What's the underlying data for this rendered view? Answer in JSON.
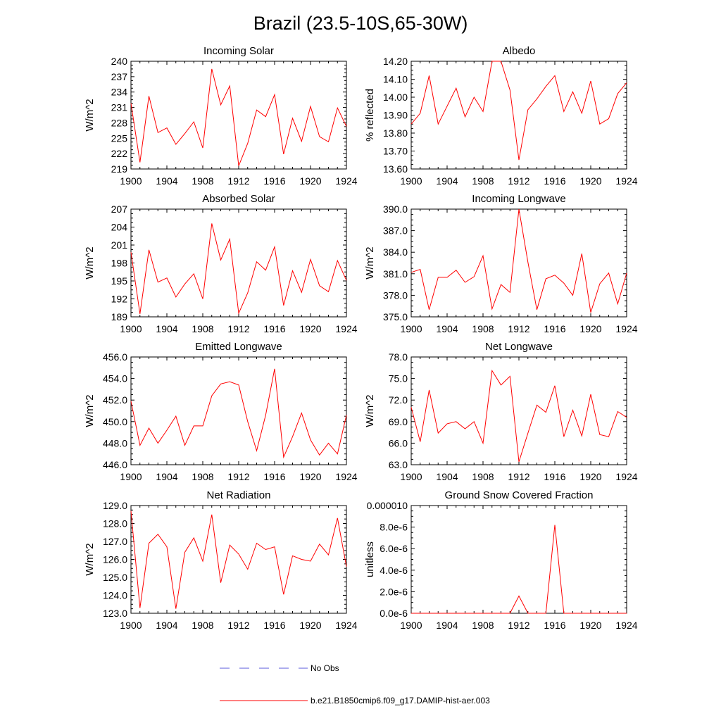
{
  "figure": {
    "title": "Brazil (23.5-10S,65-30W)",
    "line_color": "#ff0000",
    "obs_color": "#5a5adc"
  },
  "legend": [
    {
      "label": "No Obs",
      "style": "dashed",
      "color": "#5a5adc"
    },
    {
      "label": "b.e21.B1850cmip6.f09_g17.DAMIP-hist-aer.003",
      "style": "solid",
      "color": "#ff0000"
    }
  ],
  "chart_data": [
    {
      "type": "line",
      "title": "Incoming Solar",
      "ylabel": "W/m^2",
      "x": [
        1900,
        1901,
        1902,
        1903,
        1904,
        1905,
        1906,
        1907,
        1908,
        1909,
        1910,
        1911,
        1912,
        1913,
        1914,
        1915,
        1916,
        1917,
        1918,
        1919,
        1920,
        1921,
        1922,
        1923,
        1924
      ],
      "series": [
        {
          "values": [
            231.8,
            220.3,
            233.2,
            226.1,
            227.0,
            223.8,
            225.9,
            228.2,
            223.1,
            238.5,
            231.5,
            235.2,
            219.6,
            224.0,
            230.5,
            229.2,
            233.5,
            221.9,
            228.9,
            224.4,
            231.2,
            225.3,
            224.3,
            230.9,
            227.3
          ]
        }
      ],
      "xlim": [
        1900,
        1924
      ],
      "ylim": [
        219,
        240
      ],
      "xticks": [
        1900,
        1904,
        1908,
        1912,
        1916,
        1920,
        1924
      ],
      "yticks": [
        "219",
        "222",
        "225",
        "228",
        "231",
        "234",
        "237",
        "240"
      ]
    },
    {
      "type": "line",
      "title": "Albedo",
      "ylabel": "% reflected",
      "x": [
        1900,
        1901,
        1902,
        1903,
        1904,
        1905,
        1906,
        1907,
        1908,
        1909,
        1910,
        1911,
        1912,
        1913,
        1914,
        1915,
        1916,
        1917,
        1918,
        1919,
        1920,
        1921,
        1922,
        1923,
        1924
      ],
      "series": [
        {
          "values": [
            13.85,
            13.91,
            14.12,
            13.85,
            13.95,
            14.05,
            13.89,
            14.0,
            13.92,
            14.2,
            14.2,
            14.04,
            13.65,
            13.93,
            13.99,
            14.06,
            14.12,
            13.92,
            14.03,
            13.91,
            14.09,
            13.85,
            13.88,
            14.02,
            14.08
          ]
        }
      ],
      "xlim": [
        1900,
        1924
      ],
      "ylim": [
        13.6,
        14.2
      ],
      "xticks": [
        1900,
        1904,
        1908,
        1912,
        1916,
        1920,
        1924
      ],
      "yticks": [
        "13.60",
        "13.70",
        "13.80",
        "13.90",
        "14.00",
        "14.10",
        "14.20"
      ]
    },
    {
      "type": "line",
      "title": "Absorbed Solar",
      "ylabel": "W/m^2",
      "x": [
        1900,
        1901,
        1902,
        1903,
        1904,
        1905,
        1906,
        1907,
        1908,
        1909,
        1910,
        1911,
        1912,
        1913,
        1914,
        1915,
        1916,
        1917,
        1918,
        1919,
        1920,
        1921,
        1922,
        1923,
        1924
      ],
      "series": [
        {
          "values": [
            199.8,
            189.5,
            200.2,
            194.8,
            195.5,
            192.3,
            194.5,
            196.2,
            192.0,
            204.6,
            198.5,
            202.0,
            189.6,
            193.0,
            198.2,
            196.8,
            200.7,
            190.9,
            196.7,
            193.1,
            198.6,
            194.2,
            193.2,
            198.4,
            195.1
          ]
        }
      ],
      "xlim": [
        1900,
        1924
      ],
      "ylim": [
        189,
        207
      ],
      "xticks": [
        1900,
        1904,
        1908,
        1912,
        1916,
        1920,
        1924
      ],
      "yticks": [
        "189",
        "192",
        "195",
        "198",
        "201",
        "204",
        "207"
      ]
    },
    {
      "type": "line",
      "title": "Incoming Longwave",
      "ylabel": "W/m^2",
      "x": [
        1900,
        1901,
        1902,
        1903,
        1904,
        1905,
        1906,
        1907,
        1908,
        1909,
        1910,
        1911,
        1912,
        1913,
        1914,
        1915,
        1916,
        1917,
        1918,
        1919,
        1920,
        1921,
        1922,
        1923,
        1924
      ],
      "series": [
        {
          "values": [
            381.2,
            381.6,
            376.0,
            380.5,
            380.5,
            381.5,
            379.8,
            380.6,
            383.5,
            376.1,
            379.5,
            378.4,
            390.0,
            382.6,
            376.0,
            380.3,
            380.8,
            379.7,
            378.0,
            383.8,
            375.6,
            379.6,
            381.1,
            376.8,
            381.1
          ]
        }
      ],
      "xlim": [
        1900,
        1924
      ],
      "ylim": [
        375,
        390
      ],
      "xticks": [
        1900,
        1904,
        1908,
        1912,
        1916,
        1920,
        1924
      ],
      "yticks": [
        "375.0",
        "378.0",
        "381.0",
        "384.0",
        "387.0",
        "390.0"
      ]
    },
    {
      "type": "line",
      "title": "Emitted Longwave",
      "ylabel": "W/m^2",
      "x": [
        1900,
        1901,
        1902,
        1903,
        1904,
        1905,
        1906,
        1907,
        1908,
        1909,
        1910,
        1911,
        1912,
        1913,
        1914,
        1915,
        1916,
        1917,
        1918,
        1919,
        1920,
        1921,
        1922,
        1923,
        1924
      ],
      "series": [
        {
          "values": [
            451.9,
            447.8,
            449.4,
            448.0,
            449.2,
            450.5,
            447.8,
            449.6,
            449.6,
            452.4,
            453.5,
            453.7,
            453.4,
            450.0,
            447.3,
            450.6,
            454.9,
            446.7,
            448.6,
            450.8,
            448.3,
            446.9,
            448.0,
            447.0,
            450.6
          ]
        }
      ],
      "xlim": [
        1900,
        1924
      ],
      "ylim": [
        446,
        456
      ],
      "xticks": [
        1900,
        1904,
        1908,
        1912,
        1916,
        1920,
        1924
      ],
      "yticks": [
        "446.0",
        "448.0",
        "450.0",
        "452.0",
        "454.0",
        "456.0"
      ]
    },
    {
      "type": "line",
      "title": "Net Longwave",
      "ylabel": "W/m^2",
      "x": [
        1900,
        1901,
        1902,
        1903,
        1904,
        1905,
        1906,
        1907,
        1908,
        1909,
        1910,
        1911,
        1912,
        1913,
        1914,
        1915,
        1916,
        1917,
        1918,
        1919,
        1920,
        1921,
        1922,
        1923,
        1924
      ],
      "series": [
        {
          "values": [
            71.0,
            66.2,
            73.4,
            67.4,
            68.7,
            69.0,
            68.0,
            69.0,
            66.0,
            76.1,
            74.1,
            75.3,
            63.4,
            67.4,
            71.3,
            70.3,
            74.0,
            66.9,
            70.6,
            67.0,
            72.8,
            67.2,
            66.9,
            70.4,
            69.6
          ]
        }
      ],
      "xlim": [
        1900,
        1924
      ],
      "ylim": [
        63,
        78
      ],
      "xticks": [
        1900,
        1904,
        1908,
        1912,
        1916,
        1920,
        1924
      ],
      "yticks": [
        "63.0",
        "66.0",
        "69.0",
        "72.0",
        "75.0",
        "78.0"
      ]
    },
    {
      "type": "line",
      "title": "Net Radiation",
      "ylabel": "W/m^2",
      "x": [
        1900,
        1901,
        1902,
        1903,
        1904,
        1905,
        1906,
        1907,
        1908,
        1909,
        1910,
        1911,
        1912,
        1913,
        1914,
        1915,
        1916,
        1917,
        1918,
        1919,
        1920,
        1921,
        1922,
        1923,
        1924
      ],
      "series": [
        {
          "values": [
            128.7,
            123.3,
            126.9,
            127.4,
            126.7,
            123.25,
            126.4,
            127.2,
            125.9,
            128.5,
            124.7,
            126.8,
            126.3,
            125.45,
            126.9,
            126.55,
            126.7,
            124.05,
            126.2,
            126.0,
            125.9,
            126.85,
            126.25,
            128.3,
            125.6
          ]
        }
      ],
      "xlim": [
        1900,
        1924
      ],
      "ylim": [
        123,
        129
      ],
      "xticks": [
        1900,
        1904,
        1908,
        1912,
        1916,
        1920,
        1924
      ],
      "yticks": [
        "123.0",
        "124.0",
        "125.0",
        "126.0",
        "127.0",
        "128.0",
        "129.0"
      ]
    },
    {
      "type": "line",
      "title": "Ground Snow Covered Fraction",
      "ylabel": "unitless",
      "x": [
        1900,
        1901,
        1902,
        1903,
        1904,
        1905,
        1906,
        1907,
        1908,
        1909,
        1910,
        1911,
        1912,
        1913,
        1914,
        1915,
        1916,
        1917,
        1918,
        1919,
        1920,
        1921,
        1922,
        1923,
        1924
      ],
      "series": [
        {
          "values": [
            0,
            0,
            0,
            0,
            0,
            0,
            0,
            0,
            0,
            0,
            0,
            0,
            1.6e-06,
            0,
            0,
            0,
            8.2e-06,
            0,
            0,
            0,
            0,
            0,
            0,
            0,
            0
          ]
        }
      ],
      "xlim": [
        1900,
        1924
      ],
      "ylim": [
        0,
        1e-05
      ],
      "xticks": [
        1900,
        1904,
        1908,
        1912,
        1916,
        1920,
        1924
      ],
      "yticks": [
        "0.0e-6",
        "2.0e-6",
        "4.0e-6",
        "6.0e-6",
        "8.0e-6",
        "0.000010"
      ]
    }
  ]
}
